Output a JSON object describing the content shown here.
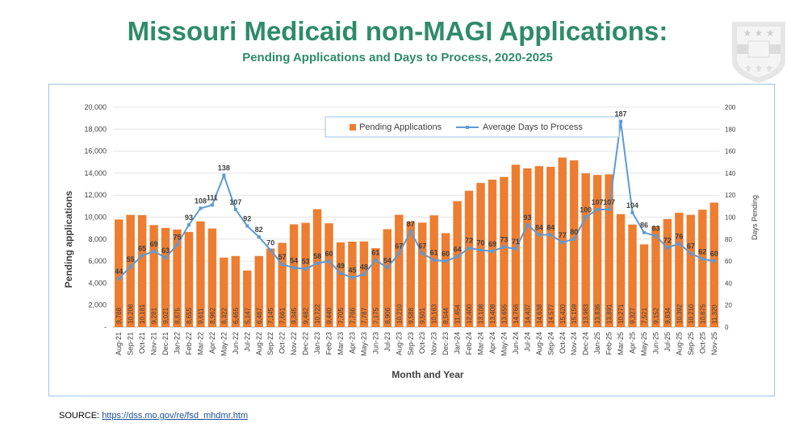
{
  "chart_data": {
    "type": "bar+line",
    "title": "Missouri Medicaid non-MAGI Applications:",
    "subtitle": "Pending Applications and Days to Process, 2020-2025",
    "xlabel": "Month and Year",
    "ylabel": "Pending applications",
    "y2label": "Days Pending",
    "ylim": [
      0,
      20000
    ],
    "y2lim": [
      0,
      200
    ],
    "yticks": [
      "-",
      "2,000",
      "4,000",
      "6,000",
      "8,000",
      "10,000",
      "12,000",
      "14,000",
      "16,000",
      "18,000",
      "20,000"
    ],
    "y2ticks": [
      "0",
      "20",
      "40",
      "60",
      "80",
      "100",
      "120",
      "140",
      "160",
      "180",
      "200"
    ],
    "legend_position": "top-center",
    "grid": true,
    "categories": [
      "Aug-21",
      "Sep-21",
      "Oct-21",
      "Nov-21",
      "Dec-21",
      "Jan-22",
      "Feb-22",
      "Mar-22",
      "Apr-22",
      "May-22",
      "Jun-22",
      "Jul-22",
      "Aug-22",
      "Sep-22",
      "Oct-22",
      "Nov-22",
      "Dec-22",
      "Jan-23",
      "Feb-23",
      "Mar-23",
      "Apr-23",
      "May-23",
      "Jun-23",
      "Jul-23",
      "Aug-23",
      "Sep-23",
      "Oct-23",
      "Nov-23",
      "Dec-23",
      "Jan-24",
      "Feb-24",
      "Mar-24",
      "Apr-24",
      "May-24",
      "Jun-24",
      "Jul-24",
      "Aug-24",
      "Sep-24",
      "Oct-24",
      "Nov-24",
      "Dec-24",
      "Jan-25",
      "Feb-25",
      "Mar-25",
      "Apr-25",
      "May-25",
      "Jun-25",
      "Jul-25",
      "Aug-25",
      "Sep-25",
      "Oct-25",
      "Nov-25"
    ],
    "series": [
      {
        "name": "Pending Applications",
        "type": "bar",
        "axis": "left",
        "color": "#ed7d31",
        "values": [
          9788,
          10208,
          10181,
          9281,
          9021,
          8875,
          8655,
          9611,
          8962,
          6322,
          6465,
          5147,
          6467,
          7145,
          7661,
          9345,
          9482,
          10722,
          9440,
          7705,
          7766,
          7787,
          7175,
          8906,
          10210,
          9588,
          9501,
          10163,
          8544,
          11454,
          12400,
          13108,
          13408,
          13655,
          14766,
          14437,
          14638,
          14577,
          15420,
          15159,
          13983,
          13836,
          13891,
          10271,
          9327,
          7521,
          9152,
          9834,
          10392,
          10210,
          10675,
          11320
        ]
      },
      {
        "name": "Average Days to Process",
        "type": "line",
        "axis": "right",
        "color": "#5b9bd5",
        "values": [
          44,
          55,
          65,
          69,
          63,
          75,
          93,
          108,
          111,
          138,
          107,
          92,
          82,
          70,
          57,
          54,
          53,
          58,
          60,
          49,
          45,
          48,
          61,
          54,
          67,
          87,
          67,
          61,
          60,
          64,
          72,
          70,
          69,
          73,
          71,
          93,
          84,
          84,
          77,
          80,
          100,
          107,
          107,
          187,
          104,
          86,
          83,
          72,
          76,
          67,
          62,
          60
        ]
      }
    ]
  },
  "source": {
    "label": "SOURCE: ",
    "link": "https://dss.mo.gov/re/fsd_mhdmr.htm"
  }
}
